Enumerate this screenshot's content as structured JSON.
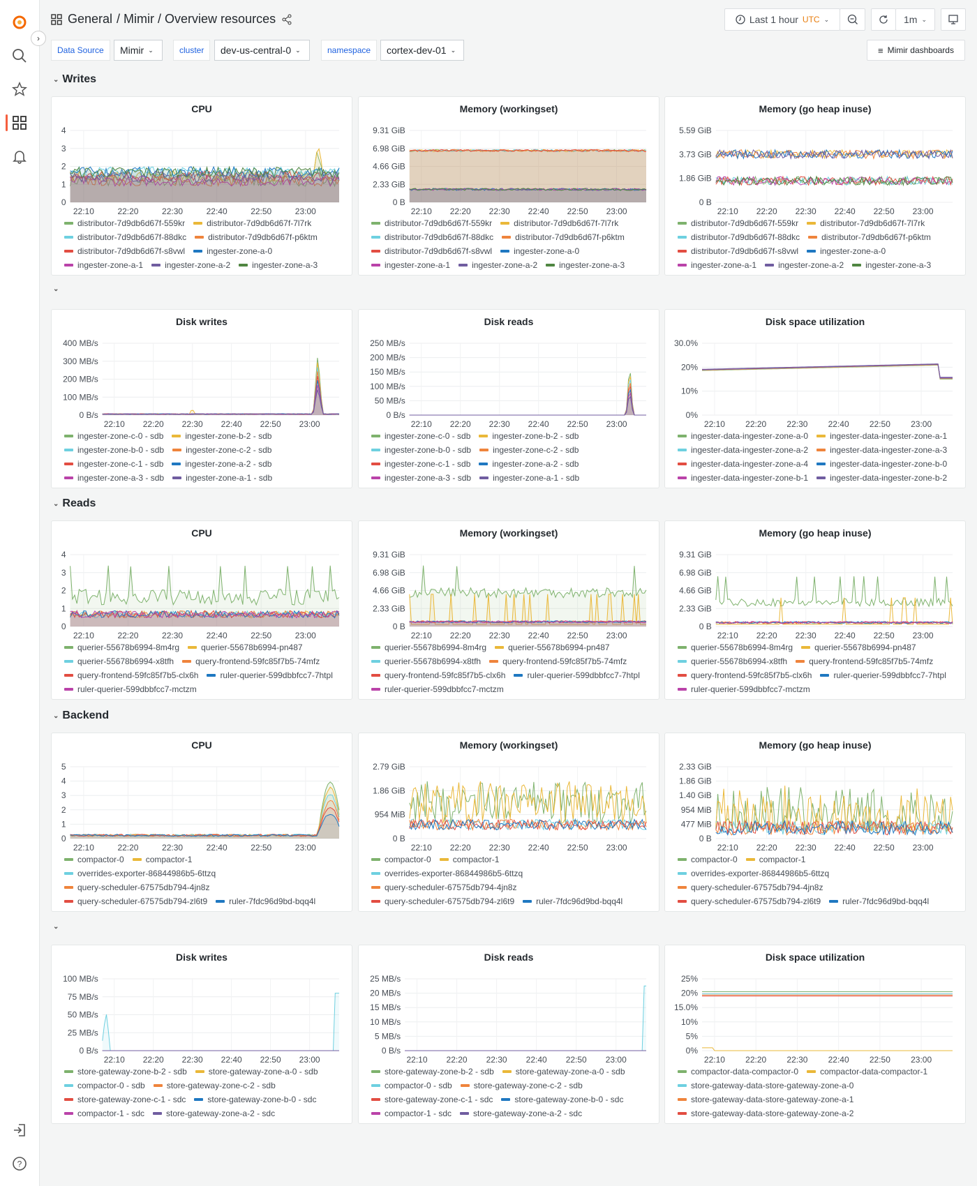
{
  "header": {
    "breadcrumb": [
      "General",
      "/ Mimir / Overview resources"
    ],
    "time_range": "Last 1 hour",
    "timezone": "UTC",
    "refresh_interval": "1m"
  },
  "variables": [
    {
      "label": "Data Source",
      "value": "Mimir"
    },
    {
      "label": "cluster",
      "value": "dev-us-central-0"
    },
    {
      "label": "namespace",
      "value": "cortex-dev-01"
    }
  ],
  "dashboards_link": "Mimir dashboards",
  "colors": [
    "#7EB26D",
    "#EAB839",
    "#6ED0E0",
    "#EF843C",
    "#E24D42",
    "#1F78C1",
    "#BA43A9",
    "#705DA0",
    "#508642"
  ],
  "x_ticks": [
    "22:10",
    "22:20",
    "22:30",
    "22:40",
    "22:50",
    "23:00"
  ],
  "rows": [
    {
      "title": "Writes",
      "panels": [
        {
          "title": "CPU",
          "y_ticks": [
            "0",
            "1",
            "2",
            "3",
            "4"
          ],
          "legend": [
            "distributor-7d9db6d67f-559kr",
            "distributor-7d9db6d67f-7l7rk",
            "distributor-7d9db6d67f-88dkc",
            "distributor-7d9db6d67f-p6ktm",
            "distributor-7d9db6d67f-s8vwl",
            "ingester-zone-a-0",
            "ingester-zone-a-1",
            "ingester-zone-a-2",
            "ingester-zone-a-3"
          ]
        },
        {
          "title": "Memory (workingset)",
          "y_ticks": [
            "0 B",
            "2.33 GiB",
            "4.66 GiB",
            "6.98 GiB",
            "9.31 GiB"
          ],
          "legend": [
            "distributor-7d9db6d67f-559kr",
            "distributor-7d9db6d67f-7l7rk",
            "distributor-7d9db6d67f-88dkc",
            "distributor-7d9db6d67f-p6ktm",
            "distributor-7d9db6d67f-s8vwl",
            "ingester-zone-a-0",
            "ingester-zone-a-1",
            "ingester-zone-a-2",
            "ingester-zone-a-3"
          ]
        },
        {
          "title": "Memory (go heap inuse)",
          "y_ticks": [
            "0 B",
            "1.86 GiB",
            "3.73 GiB",
            "5.59 GiB"
          ],
          "legend": [
            "distributor-7d9db6d67f-559kr",
            "distributor-7d9db6d67f-7l7rk",
            "distributor-7d9db6d67f-88dkc",
            "distributor-7d9db6d67f-p6ktm",
            "distributor-7d9db6d67f-s8vwl",
            "ingester-zone-a-0",
            "ingester-zone-a-1",
            "ingester-zone-a-2",
            "ingester-zone-a-3"
          ]
        }
      ]
    },
    {
      "title": "",
      "panels": [
        {
          "title": "Disk writes",
          "y_ticks": [
            "0 B/s",
            "100 MB/s",
            "200 MB/s",
            "300 MB/s",
            "400 MB/s"
          ],
          "legend": [
            "ingester-zone-c-0 - sdb",
            "ingester-zone-b-2 - sdb",
            "ingester-zone-b-0 - sdb",
            "ingester-zone-c-2 - sdb",
            "ingester-zone-c-1 - sdb",
            "ingester-zone-a-2 - sdb",
            "ingester-zone-a-3 - sdb",
            "ingester-zone-a-1 - sdb"
          ]
        },
        {
          "title": "Disk reads",
          "y_ticks": [
            "0 B/s",
            "50 MB/s",
            "100 MB/s",
            "150 MB/s",
            "200 MB/s",
            "250 MB/s"
          ],
          "legend": [
            "ingester-zone-c-0 - sdb",
            "ingester-zone-b-2 - sdb",
            "ingester-zone-b-0 - sdb",
            "ingester-zone-c-2 - sdb",
            "ingester-zone-c-1 - sdb",
            "ingester-zone-a-2 - sdb",
            "ingester-zone-a-3 - sdb",
            "ingester-zone-a-1 - sdb"
          ]
        },
        {
          "title": "Disk space utilization",
          "y_ticks": [
            "0%",
            "10%",
            "20%",
            "30.0%"
          ],
          "legend": [
            "ingester-data-ingester-zone-a-0",
            "ingester-data-ingester-zone-a-1",
            "ingester-data-ingester-zone-a-2",
            "ingester-data-ingester-zone-a-3",
            "ingester-data-ingester-zone-a-4",
            "ingester-data-ingester-zone-b-0",
            "ingester-data-ingester-zone-b-1",
            "ingester-data-ingester-zone-b-2"
          ]
        }
      ]
    },
    {
      "title": "Reads",
      "panels": [
        {
          "title": "CPU",
          "y_ticks": [
            "0",
            "1",
            "2",
            "3",
            "4"
          ],
          "legend": [
            "querier-55678b6994-8m4rg",
            "querier-55678b6994-pn487",
            "querier-55678b6994-x8tfh",
            "query-frontend-59fc85f7b5-74mfz",
            "query-frontend-59fc85f7b5-clx6h",
            "ruler-querier-599dbbfcc7-7htpl",
            "ruler-querier-599dbbfcc7-mctzm"
          ]
        },
        {
          "title": "Memory (workingset)",
          "y_ticks": [
            "0 B",
            "2.33 GiB",
            "4.66 GiB",
            "6.98 GiB",
            "9.31 GiB"
          ],
          "legend": [
            "querier-55678b6994-8m4rg",
            "querier-55678b6994-pn487",
            "querier-55678b6994-x8tfh",
            "query-frontend-59fc85f7b5-74mfz",
            "query-frontend-59fc85f7b5-clx6h",
            "ruler-querier-599dbbfcc7-7htpl",
            "ruler-querier-599dbbfcc7-mctzm"
          ]
        },
        {
          "title": "Memory (go heap inuse)",
          "y_ticks": [
            "0 B",
            "2.33 GiB",
            "4.66 GiB",
            "6.98 GiB",
            "9.31 GiB"
          ],
          "legend": [
            "querier-55678b6994-8m4rg",
            "querier-55678b6994-pn487",
            "querier-55678b6994-x8tfh",
            "query-frontend-59fc85f7b5-74mfz",
            "query-frontend-59fc85f7b5-clx6h",
            "ruler-querier-599dbbfcc7-7htpl",
            "ruler-querier-599dbbfcc7-mctzm"
          ]
        }
      ]
    },
    {
      "title": "Backend",
      "panels": [
        {
          "title": "CPU",
          "y_ticks": [
            "0",
            "1",
            "2",
            "3",
            "4",
            "5"
          ],
          "legend": [
            "compactor-0",
            "compactor-1",
            "overrides-exporter-86844986b5-6ttzq",
            "query-scheduler-67575db794-4jn8z",
            "query-scheduler-67575db794-zl6t9",
            "ruler-7fdc96d9bd-bqq4l"
          ]
        },
        {
          "title": "Memory (workingset)",
          "y_ticks": [
            "0 B",
            "954 MiB",
            "1.86 GiB",
            "2.79 GiB"
          ],
          "legend": [
            "compactor-0",
            "compactor-1",
            "overrides-exporter-86844986b5-6ttzq",
            "query-scheduler-67575db794-4jn8z",
            "query-scheduler-67575db794-zl6t9",
            "ruler-7fdc96d9bd-bqq4l"
          ]
        },
        {
          "title": "Memory (go heap inuse)",
          "y_ticks": [
            "0 B",
            "477 MiB",
            "954 MiB",
            "1.40 GiB",
            "1.86 GiB",
            "2.33 GiB"
          ],
          "legend": [
            "compactor-0",
            "compactor-1",
            "overrides-exporter-86844986b5-6ttzq",
            "query-scheduler-67575db794-4jn8z",
            "query-scheduler-67575db794-zl6t9",
            "ruler-7fdc96d9bd-bqq4l"
          ]
        }
      ]
    },
    {
      "title": "",
      "panels": [
        {
          "title": "Disk writes",
          "y_ticks": [
            "0 B/s",
            "25 MB/s",
            "50 MB/s",
            "75 MB/s",
            "100 MB/s"
          ],
          "legend": [
            "store-gateway-zone-b-2 - sdb",
            "store-gateway-zone-a-0 - sdb",
            "compactor-0 - sdb",
            "store-gateway-zone-c-2 - sdb",
            "store-gateway-zone-c-1 - sdc",
            "store-gateway-zone-b-0 - sdc",
            "compactor-1 - sdc",
            "store-gateway-zone-a-2 - sdc"
          ]
        },
        {
          "title": "Disk reads",
          "y_ticks": [
            "0 B/s",
            "5 MB/s",
            "10 MB/s",
            "15 MB/s",
            "20 MB/s",
            "25 MB/s"
          ],
          "legend": [
            "store-gateway-zone-b-2 - sdb",
            "store-gateway-zone-a-0 - sdb",
            "compactor-0 - sdb",
            "store-gateway-zone-c-2 - sdb",
            "store-gateway-zone-c-1 - sdc",
            "store-gateway-zone-b-0 - sdc",
            "compactor-1 - sdc",
            "store-gateway-zone-a-2 - sdc"
          ]
        },
        {
          "title": "Disk space utilization",
          "y_ticks": [
            "0%",
            "5%",
            "10%",
            "15.0%",
            "20%",
            "25%"
          ],
          "legend": [
            "compactor-data-compactor-0",
            "compactor-data-compactor-1",
            "store-gateway-data-store-gateway-zone-a-0",
            "store-gateway-data-store-gateway-zone-a-1",
            "store-gateway-data-store-gateway-zone-a-2"
          ]
        }
      ]
    }
  ]
}
